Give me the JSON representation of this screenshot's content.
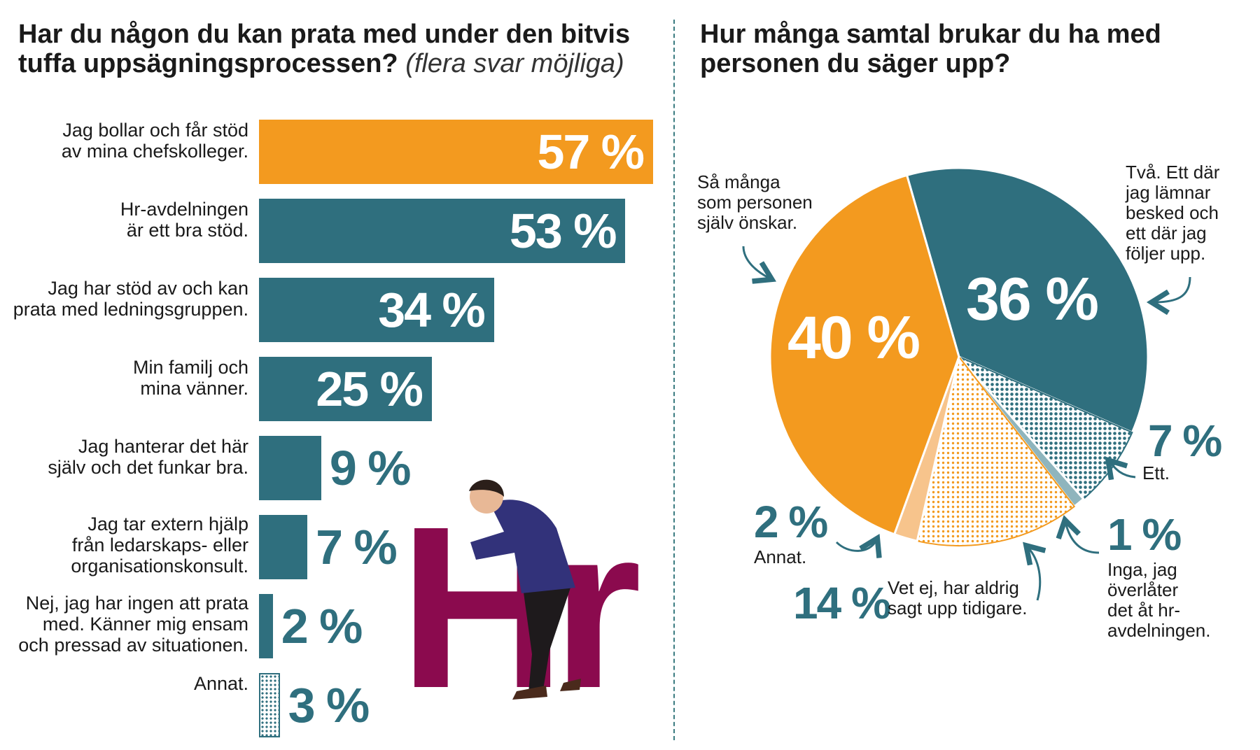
{
  "left": {
    "title": "Har du någon du kan prata med under den bitvis tuffa uppsägningsprocessen?",
    "subtitle": "(flera svar möjliga)"
  },
  "right": {
    "title": "Hur många samtal brukar du ha med personen du säger upp?"
  },
  "illustration_text": "Hr",
  "colors": {
    "orange": "#f39a1f",
    "teal": "#2f6f7e",
    "light_orange": "#f7c48c",
    "light_teal": "#8fb5bd",
    "magenta": "#8b0a4e"
  },
  "chart_data": [
    {
      "type": "bar",
      "orientation": "horizontal",
      "categories": [
        "Jag bollar och får stöd av mina chefskolleger.",
        "Hr-avdelningen är ett bra stöd.",
        "Jag har stöd av och kan prata med ledningsgruppen.",
        "Min familj och mina vänner.",
        "Jag hanterar det här själv och det funkar bra.",
        "Jag tar extern hjälp från ledarskaps- eller organisationskonsult.",
        "Nej, jag har ingen att prata med. Känner mig ensam och pressad av situationen.",
        "Annat."
      ],
      "label_lines": [
        [
          "Jag bollar och får stöd",
          "av mina chefskolleger."
        ],
        [
          "Hr-avdelningen",
          "är ett bra stöd."
        ],
        [
          "Jag har stöd av och kan",
          "prata med ledningsgruppen."
        ],
        [
          "Min familj och",
          "mina vänner."
        ],
        [
          "Jag hanterar det här",
          "själv och det funkar bra."
        ],
        [
          "Jag tar extern hjälp",
          "från ledarskaps- eller",
          "organisationskonsult."
        ],
        [
          "Nej, jag har ingen att prata",
          "med. Känner mig ensam",
          "och pressad av situationen."
        ],
        [
          "Annat."
        ]
      ],
      "values": [
        57,
        53,
        34,
        25,
        9,
        7,
        2,
        3
      ],
      "value_labels": [
        "57 %",
        "53 %",
        "34 %",
        "25 %",
        "9 %",
        "7 %",
        "2 %",
        "3 %"
      ],
      "bar_styles": [
        "orange",
        "teal",
        "teal",
        "teal",
        "teal",
        "teal",
        "teal",
        "dotted"
      ],
      "xlim": [
        0,
        57
      ]
    },
    {
      "type": "pie",
      "labels": [
        "Två. Ett där jag lämnar besked och ett där jag följer upp.",
        "Ett.",
        "Inga, jag överlåter det åt hr-avdelningen.",
        "Vet ej, har aldrig sagt upp tidigare.",
        "Annat.",
        "Så många som personen själv önskar."
      ],
      "values": [
        36,
        7,
        1,
        14,
        2,
        40
      ],
      "value_labels": [
        "36 %",
        "7 %",
        "1 %",
        "14 %",
        "2 %",
        "40 %"
      ],
      "slice_styles": [
        "teal",
        "dotted-teal",
        "light-teal",
        "dotted-orange",
        "light-orange",
        "orange"
      ],
      "note_lines": [
        [
          "Två. Ett där",
          "jag lämnar",
          "besked och",
          "ett där jag",
          "följer upp."
        ],
        [
          "Ett."
        ],
        [
          "Inga, jag",
          "överlåter",
          "det åt hr-",
          "avdelningen."
        ],
        [
          "Vet ej, har aldrig",
          "sagt upp tidigare."
        ],
        [
          "Annat."
        ],
        [
          "Så många",
          "som personen",
          "själv önskar."
        ]
      ]
    }
  ]
}
